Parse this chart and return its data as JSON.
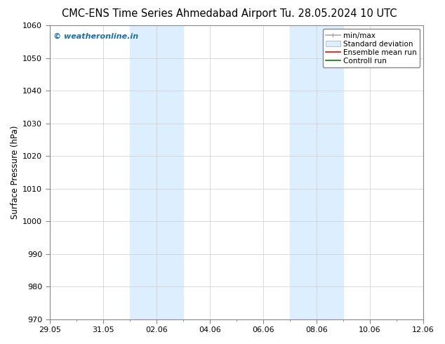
{
  "title_left": "CMC-ENS Time Series Ahmedabad Airport",
  "title_right": "Tu. 28.05.2024 10 UTC",
  "ylabel": "Surface Pressure (hPa)",
  "ylim": [
    970,
    1060
  ],
  "yticks": [
    970,
    980,
    990,
    1000,
    1010,
    1020,
    1030,
    1040,
    1050,
    1060
  ],
  "xtick_labels": [
    "29.05",
    "31.05",
    "02.06",
    "04.06",
    "06.06",
    "08.06",
    "10.06",
    "12.06"
  ],
  "xtick_positions": [
    0,
    2,
    4,
    6,
    8,
    10,
    12,
    14
  ],
  "shaded_bands": [
    {
      "x_start": 3,
      "x_end": 5,
      "color": "#ddeeff"
    },
    {
      "x_start": 9,
      "x_end": 11,
      "color": "#ddeeff"
    }
  ],
  "watermark_text": "© weatheronline.in",
  "watermark_color": "#1a6fa8",
  "legend_entries": [
    {
      "label": "min/max",
      "color": "#aaaaaa",
      "lw": 1.2
    },
    {
      "label": "Standard deviation",
      "facecolor": "#ddeeff",
      "edgecolor": "#aaaaaa"
    },
    {
      "label": "Ensemble mean run",
      "color": "red",
      "lw": 1.2
    },
    {
      "label": "Controll run",
      "color": "green",
      "lw": 1.2
    }
  ],
  "bg_color": "#ffffff",
  "plot_bg_color": "#ffffff",
  "grid_color": "#cccccc",
  "title_fontsize": 10.5,
  "tick_fontsize": 8,
  "ylabel_fontsize": 8.5,
  "legend_fontsize": 7.5,
  "watermark_fontsize": 8
}
